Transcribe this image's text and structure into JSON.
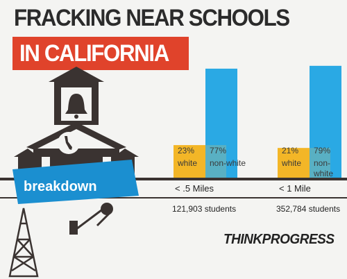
{
  "header": {
    "title_line1": "FRACKING NEAR SCHOOLS",
    "title_line2": "IN CALIFORNIA"
  },
  "badge": {
    "text": "breakdown"
  },
  "brand": {
    "text": "THINKPROGRESS"
  },
  "colors": {
    "white_bar": "#f3b627",
    "nonwhite_bar": "#2aa9e4",
    "title_red": "#e0432b",
    "dark": "#3a3331"
  },
  "chart_data": {
    "type": "bar",
    "categories": [
      "< .5 Miles",
      "< 1 Mile"
    ],
    "series": [
      {
        "name": "white",
        "values": [
          23,
          21
        ]
      },
      {
        "name": "non-white",
        "values": [
          77,
          79
        ]
      }
    ],
    "data_labels": [
      [
        {
          "pct": "23%",
          "group": "white"
        },
        {
          "pct": "77%",
          "group": "non-white"
        }
      ],
      [
        {
          "pct": "21%",
          "group": "white"
        },
        {
          "pct": "79%",
          "group": "non-white"
        }
      ]
    ],
    "students": [
      "121,903 students",
      "352,784 students"
    ],
    "ylim": [
      0,
      100
    ]
  }
}
